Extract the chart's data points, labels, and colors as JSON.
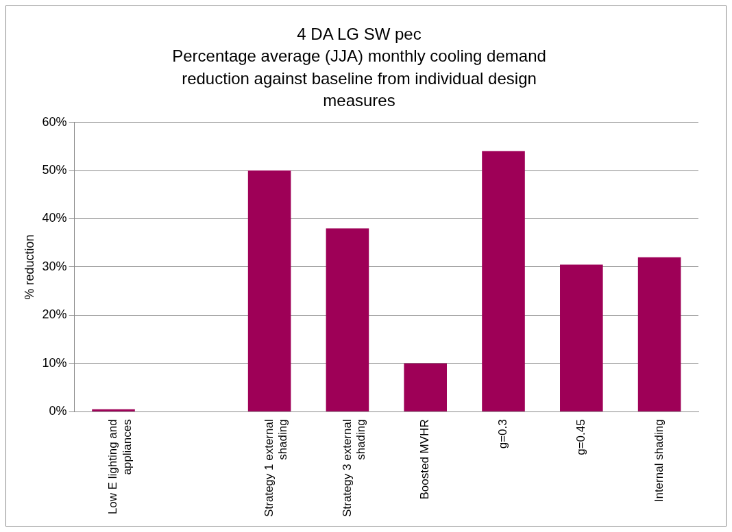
{
  "chart_data": {
    "type": "bar",
    "title": "4 DA LG SW pec",
    "subtitle": "Percentage average (JJA) monthly cooling demand reduction against baseline from individual design measures",
    "ylabel": "% reduction",
    "categories": [
      "Low E lighting and appliances",
      null,
      "Strategy 1 external shading",
      "Strategy 3 external shading",
      "Boosted MVHR",
      "g=0.3",
      "g=0.45",
      "Internal shading"
    ],
    "values": [
      0.5,
      0,
      50,
      38,
      10,
      54,
      30.5,
      32
    ],
    "color": "#9e0057",
    "ylim": [
      0,
      60
    ],
    "yticks": [
      {
        "value": 0,
        "label": "0%"
      },
      {
        "value": 10,
        "label": "10%"
      },
      {
        "value": 20,
        "label": "20%"
      },
      {
        "value": 30,
        "label": "30%"
      },
      {
        "value": 40,
        "label": "40%"
      },
      {
        "value": 50,
        "label": "50%"
      },
      {
        "value": 60,
        "label": "60%"
      }
    ],
    "grid": "y",
    "legend": false
  }
}
